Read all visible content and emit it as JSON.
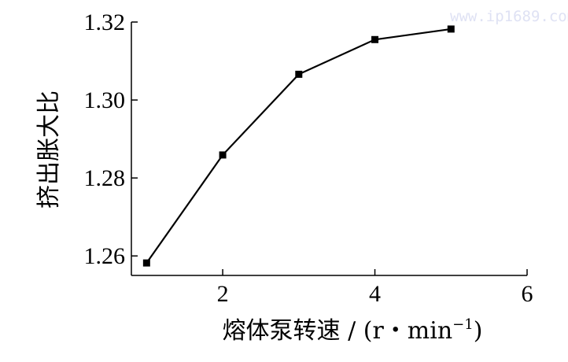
{
  "chart_data": {
    "type": "line",
    "title": "",
    "xlabel": "熔体泵转速 / (r・min⁻¹)",
    "xlabel_main": "熔体泵转速 / (r・min",
    "xlabel_sup": "−1",
    "xlabel_end": ")",
    "ylabel": "挤出胀大比",
    "x": [
      1,
      2,
      3,
      4,
      5
    ],
    "series": [
      {
        "values": [
          1.2582,
          1.2859,
          1.3066,
          1.3155,
          1.3182
        ]
      }
    ],
    "xlim": [
      0.8,
      6
    ],
    "ylim": [
      1.255,
      1.32
    ],
    "xticks": [
      2,
      4,
      6
    ],
    "xtick_labels": [
      "2",
      "4",
      "6"
    ],
    "yticks": [
      1.26,
      1.28,
      1.3,
      1.32
    ],
    "ytick_labels": [
      "1.26",
      "1.28",
      "1.30",
      "1.32"
    ],
    "grid": false,
    "marker": "square",
    "line_color": "#000000"
  },
  "watermark": "www.ip1689.com"
}
